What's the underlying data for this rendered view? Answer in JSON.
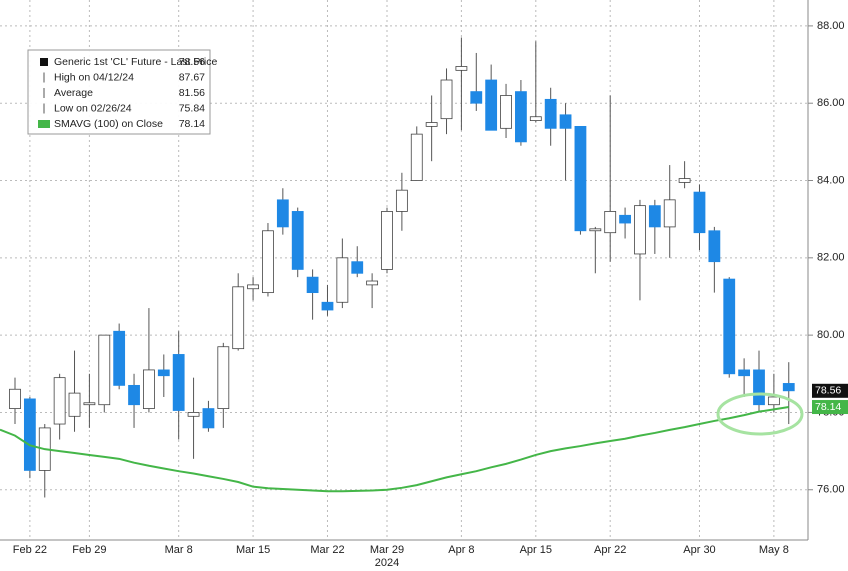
{
  "chart_data": {
    "type": "candlestick",
    "categories": [
      null,
      "Feb 22",
      null,
      null,
      null,
      "Feb 29",
      null,
      null,
      null,
      null,
      null,
      "Mar 8",
      null,
      null,
      null,
      null,
      "Mar 15",
      null,
      null,
      null,
      null,
      "Mar 22",
      null,
      null,
      null,
      "Mar 29",
      null,
      null,
      null,
      null,
      "Apr 8",
      null,
      null,
      null,
      null,
      "Apr 15",
      null,
      null,
      null,
      null,
      "Apr 22",
      null,
      null,
      null,
      null,
      null,
      "Apr 30",
      null,
      null,
      null,
      null,
      "May 8",
      null
    ],
    "x_sublabel": "2024",
    "ylim": [
      74.7,
      88.67
    ],
    "yticks": [
      {
        "value": 76,
        "label": "76.00"
      },
      {
        "value": 78,
        "label": "78.00"
      },
      {
        "value": 80,
        "label": "80.00"
      },
      {
        "value": 82,
        "label": "82.00"
      },
      {
        "value": 84,
        "label": "84.00"
      },
      {
        "value": 86,
        "label": "86.00"
      },
      {
        "value": 88,
        "label": "88.00"
      }
    ],
    "grid": true,
    "series": [
      {
        "name": "Generic 1st 'CL' Future - Last Price",
        "last": 78.56,
        "up_color": "#ffffff",
        "down_color": "#1e88e5",
        "open": [
          78.1,
          78.35,
          76.5,
          77.7,
          77.9,
          78.2,
          78.2,
          80.1,
          78.7,
          78.1,
          79.1,
          79.5,
          77.9,
          78.1,
          78.1,
          79.65,
          81.2,
          81.1,
          83.5,
          83.2,
          81.5,
          80.85,
          80.85,
          81.9,
          81.3,
          81.7,
          83.2,
          84.0,
          85.4,
          85.6,
          86.85,
          86.3,
          86.6,
          85.35,
          86.3,
          85.55,
          86.1,
          85.7,
          85.4,
          82.7,
          82.65,
          83.1,
          82.1,
          83.35,
          82.8,
          83.95,
          83.7,
          82.7,
          81.45,
          79.1,
          79.1,
          78.2,
          78.75
        ],
        "high": [
          78.9,
          78.4,
          77.7,
          79.0,
          79.6,
          79.0,
          80.0,
          80.3,
          79.0,
          80.7,
          79.5,
          80.1,
          78.9,
          78.3,
          79.8,
          81.6,
          81.5,
          82.9,
          83.8,
          83.3,
          81.7,
          81.3,
          82.5,
          82.3,
          81.6,
          83.3,
          84.2,
          85.4,
          86.2,
          86.9,
          87.7,
          87.3,
          87.0,
          86.5,
          86.6,
          87.6,
          86.4,
          86.0,
          85.4,
          82.8,
          86.2,
          83.3,
          83.5,
          83.5,
          84.4,
          84.5,
          83.9,
          82.8,
          81.5,
          79.4,
          79.6,
          79.0,
          79.3
        ],
        "low": [
          77.7,
          76.3,
          75.8,
          77.3,
          77.5,
          77.6,
          78.0,
          78.6,
          77.6,
          78.0,
          78.4,
          77.3,
          76.8,
          77.5,
          77.6,
          79.6,
          80.9,
          81.0,
          82.6,
          81.5,
          80.4,
          80.5,
          80.7,
          81.5,
          80.7,
          81.6,
          82.7,
          84.0,
          84.5,
          85.2,
          85.3,
          85.8,
          85.3,
          85.1,
          84.9,
          85.5,
          84.9,
          84.0,
          82.6,
          81.6,
          81.9,
          82.5,
          80.9,
          82.1,
          82.0,
          83.8,
          82.2,
          81.1,
          78.9,
          78.4,
          78.0,
          78.0,
          77.7
        ],
        "close": [
          78.6,
          76.5,
          77.6,
          78.9,
          78.5,
          78.25,
          80.0,
          78.7,
          78.2,
          79.1,
          78.95,
          78.05,
          78.0,
          77.6,
          79.7,
          81.25,
          81.3,
          82.7,
          82.8,
          81.7,
          81.1,
          80.65,
          82.0,
          81.6,
          81.4,
          83.2,
          83.75,
          85.2,
          85.5,
          86.6,
          86.95,
          86.0,
          85.3,
          86.2,
          85.0,
          85.65,
          85.35,
          85.35,
          82.7,
          82.75,
          83.2,
          82.9,
          83.35,
          82.8,
          83.5,
          84.05,
          82.65,
          81.9,
          79.0,
          78.95,
          78.2,
          78.4,
          78.56
        ]
      },
      {
        "name": "SMAVG (100)  on Close",
        "last": 78.14,
        "color": "#44b648",
        "values": [
          77.4,
          77.15,
          77.05,
          77.0,
          76.95,
          76.9,
          76.85,
          76.8,
          76.7,
          76.62,
          76.55,
          76.48,
          76.42,
          76.35,
          76.28,
          76.2,
          76.08,
          76.04,
          76.02,
          76.0,
          75.98,
          75.96,
          75.96,
          75.97,
          75.98,
          76.0,
          76.05,
          76.12,
          76.22,
          76.32,
          76.4,
          76.48,
          76.58,
          76.67,
          76.78,
          76.9,
          77.0,
          77.07,
          77.13,
          77.2,
          77.26,
          77.32,
          77.4,
          77.47,
          77.55,
          77.62,
          77.7,
          77.78,
          77.85,
          77.93,
          78.02,
          78.08,
          78.14
        ]
      }
    ],
    "stats": [
      {
        "label": "High on 04/12/24",
        "value": 87.67
      },
      {
        "label": "Average",
        "value": 81.56
      },
      {
        "label": "Low on 02/26/24",
        "value": 75.84
      }
    ]
  }
}
